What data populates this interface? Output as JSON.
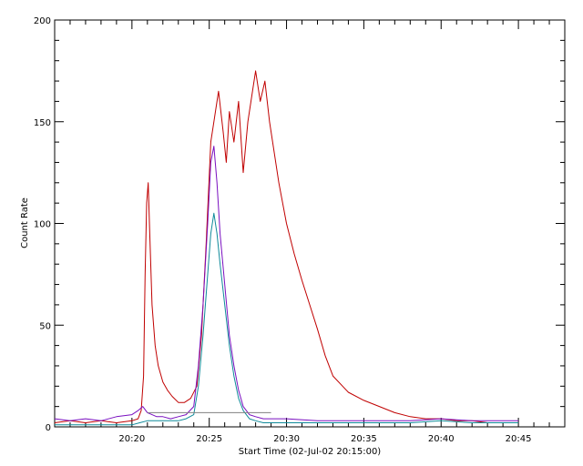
{
  "chart_data": {
    "type": "line",
    "title": "",
    "xlabel": "Start Time (02-Jul-02 20:15:00)",
    "ylabel": "Count Rate",
    "x_unit": "minutes",
    "xlim": [
      15.0,
      48.0
    ],
    "ylim": [
      0,
      200
    ],
    "x_ticks": [
      {
        "value": 20,
        "label": "20:20"
      },
      {
        "value": 25,
        "label": "20:25"
      },
      {
        "value": 30,
        "label": "20:30"
      },
      {
        "value": 35,
        "label": "20:35"
      },
      {
        "value": 40,
        "label": "20:40"
      },
      {
        "value": 45,
        "label": "20:45"
      }
    ],
    "y_ticks": [
      0,
      50,
      100,
      150,
      200
    ],
    "grid": false,
    "series": [
      {
        "color": "#c00000",
        "x": [
          15.0,
          16.0,
          17.0,
          18.0,
          19.0,
          20.0,
          20.4,
          20.6,
          20.75,
          20.85,
          20.95,
          21.05,
          21.15,
          21.3,
          21.5,
          21.7,
          22.0,
          22.3,
          22.6,
          23.0,
          23.4,
          23.8,
          24.2,
          24.5,
          24.8,
          25.1,
          25.3,
          25.6,
          25.9,
          26.1,
          26.3,
          26.6,
          26.9,
          27.2,
          27.5,
          27.8,
          28.0,
          28.3,
          28.6,
          28.9,
          29.2,
          29.5,
          30.0,
          30.5,
          31.0,
          31.5,
          32.0,
          32.5,
          33.0,
          34.0,
          35.0,
          36.0,
          37.0,
          38.0,
          39.0,
          40.0,
          41.0,
          42.0,
          43.0,
          44.0,
          45.0
        ],
        "y": [
          2,
          3,
          2,
          3,
          2,
          3,
          4,
          8,
          25,
          75,
          110,
          120,
          95,
          60,
          40,
          30,
          22,
          18,
          15,
          12,
          12,
          14,
          20,
          45,
          90,
          140,
          150,
          165,
          145,
          130,
          155,
          140,
          160,
          125,
          150,
          165,
          175,
          160,
          170,
          150,
          135,
          120,
          100,
          85,
          72,
          60,
          48,
          35,
          25,
          17,
          13,
          10,
          7,
          5,
          4,
          4,
          3,
          3,
          2,
          2,
          2
        ]
      },
      {
        "color": "#7a10c0",
        "x": [
          15.0,
          16.0,
          17.0,
          18.0,
          19.0,
          20.0,
          20.4,
          20.7,
          21.0,
          21.3,
          21.6,
          22.0,
          22.5,
          23.0,
          23.5,
          24.0,
          24.3,
          24.6,
          24.9,
          25.1,
          25.3,
          25.5,
          25.7,
          26.0,
          26.3,
          26.6,
          26.9,
          27.2,
          27.6,
          28.0,
          28.5,
          29.0,
          30.0,
          32.0,
          34.0,
          36.0,
          38.0,
          40.0,
          42.0,
          44.0,
          45.0
        ],
        "y": [
          4,
          3,
          4,
          3,
          5,
          6,
          8,
          10,
          7,
          6,
          5,
          5,
          4,
          5,
          6,
          10,
          30,
          60,
          100,
          130,
          138,
          120,
          95,
          70,
          45,
          30,
          18,
          10,
          6,
          5,
          4,
          4,
          4,
          3,
          3,
          3,
          3,
          4,
          3,
          3,
          3
        ]
      },
      {
        "color": "#0f8a9a",
        "x": [
          15.0,
          16.0,
          17.0,
          18.0,
          19.0,
          20.0,
          20.5,
          21.0,
          21.5,
          22.0,
          22.5,
          23.0,
          23.5,
          24.0,
          24.3,
          24.6,
          24.9,
          25.1,
          25.3,
          25.5,
          25.7,
          26.0,
          26.3,
          26.6,
          26.9,
          27.2,
          27.6,
          28.0,
          28.5,
          29.0,
          30.0,
          32.0,
          34.0,
          36.0,
          38.0,
          40.0,
          42.0,
          44.0,
          45.0
        ],
        "y": [
          1,
          1,
          1,
          1,
          1,
          1,
          2,
          3,
          3,
          3,
          3,
          3,
          4,
          6,
          20,
          45,
          75,
          95,
          105,
          95,
          80,
          60,
          40,
          25,
          14,
          8,
          4,
          3,
          2,
          2,
          2,
          2,
          2,
          2,
          2,
          3,
          2,
          2,
          2
        ]
      },
      {
        "color": "#808080",
        "x": [
          21.0,
          29.0
        ],
        "y": [
          7,
          7
        ]
      }
    ]
  }
}
